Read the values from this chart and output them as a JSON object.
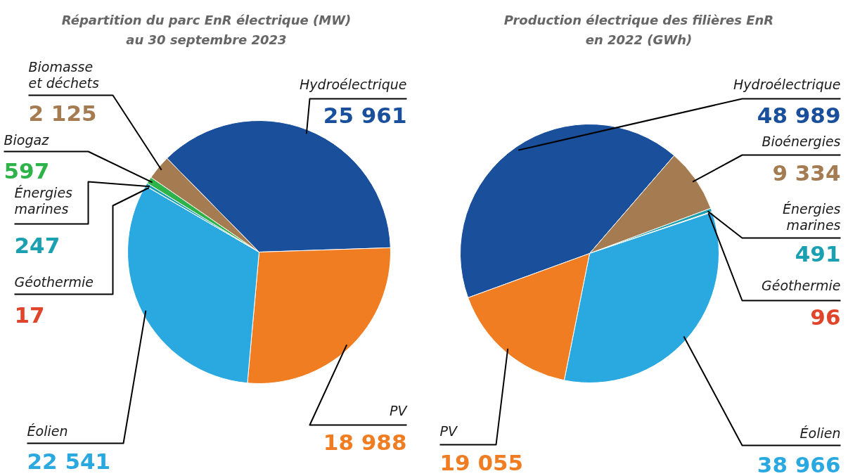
{
  "chart_data": [
    {
      "type": "pie",
      "title": "Répartition du parc EnR électrique (MW)\nau 30 septembre 2023",
      "categories": [
        "Hydroélectrique",
        "PV",
        "Éolien",
        "Géothermie",
        "Énergies\nmarines",
        "Biogaz",
        "Biomasse\net déchets"
      ],
      "values": [
        25961,
        18988,
        22541,
        17,
        247,
        597,
        2125
      ],
      "value_labels": [
        "25 961",
        "18 988",
        "22 541",
        "17",
        "247",
        "597",
        "2 125"
      ],
      "colors": [
        "#1a4f9c",
        "#f07d22",
        "#2aa8e0",
        "#e0452b",
        "#1aa0b0",
        "#2db34a",
        "#a57c52"
      ]
    },
    {
      "type": "pie",
      "title": "Production électrique des filières EnR\nen 2022 (GWh)",
      "categories": [
        "Hydroélectrique",
        "Bioénergies",
        "Énergies\nmarines",
        "Géothermie",
        "Éolien",
        "PV"
      ],
      "values": [
        48989,
        9334,
        491,
        96,
        38966,
        19055
      ],
      "value_labels": [
        "48 989",
        "9 334",
        "491",
        "96",
        "38 966",
        "19 055"
      ],
      "colors": [
        "#1a4f9c",
        "#a57c52",
        "#1aa0b0",
        "#e0452b",
        "#2aa8e0",
        "#f07d22"
      ]
    }
  ]
}
